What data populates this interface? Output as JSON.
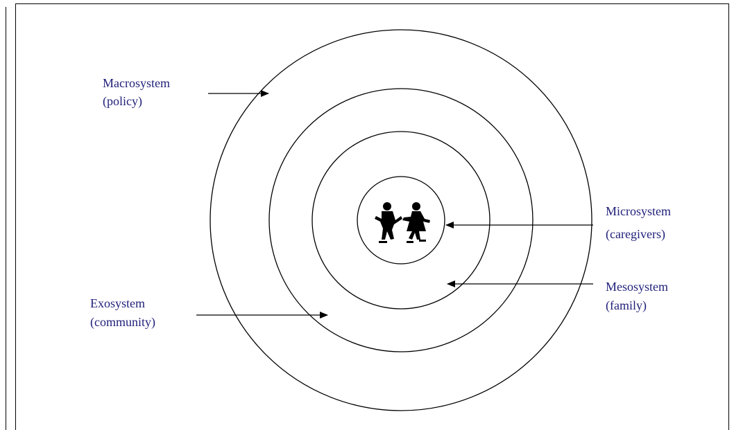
{
  "labels": [
    {
      "name": "Macrosystem",
      "description": "(policy)"
    },
    {
      "name": "Microsystem",
      "description": "(caregivers)"
    },
    {
      "name": "Mesosystem",
      "description": "(family)"
    },
    {
      "name": "Exosystem",
      "description": "(community)"
    }
  ]
}
